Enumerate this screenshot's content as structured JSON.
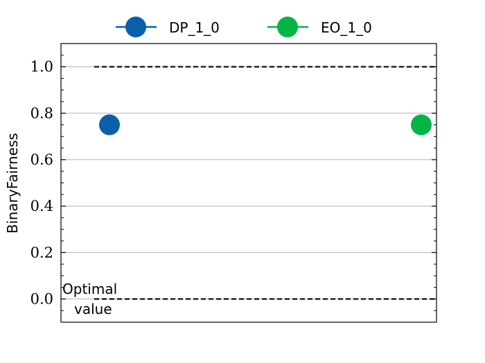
{
  "chart_data": {
    "type": "scatter",
    "title": "",
    "xlabel": "",
    "ylabel": "BinaryFairness",
    "ylim": [
      -0.1,
      1.1
    ],
    "yticks": [
      {
        "value": 0.0,
        "label": "0.0"
      },
      {
        "value": 0.2,
        "label": "0.2"
      },
      {
        "value": 0.4,
        "label": "0.4"
      },
      {
        "value": 0.6,
        "label": "0.6"
      },
      {
        "value": 0.8,
        "label": "0.8"
      },
      {
        "value": 1.0,
        "label": "1.0"
      }
    ],
    "grid": "horizontal",
    "legend": "top-center, outside",
    "series": [
      {
        "name": "DP_1_0",
        "color": "#0a5eab",
        "x": 0,
        "y": 0.75
      },
      {
        "name": "EO_1_0",
        "color": "#00b545",
        "x": 1,
        "y": 0.75
      }
    ],
    "reference_lines": [
      {
        "y": 1.0,
        "style": "dashed",
        "color": "#000000"
      },
      {
        "y": 0.0,
        "style": "dashed",
        "color": "#000000"
      }
    ],
    "annotation": {
      "line1": "Optimal",
      "line2": "value",
      "near_y": 0.0
    }
  }
}
